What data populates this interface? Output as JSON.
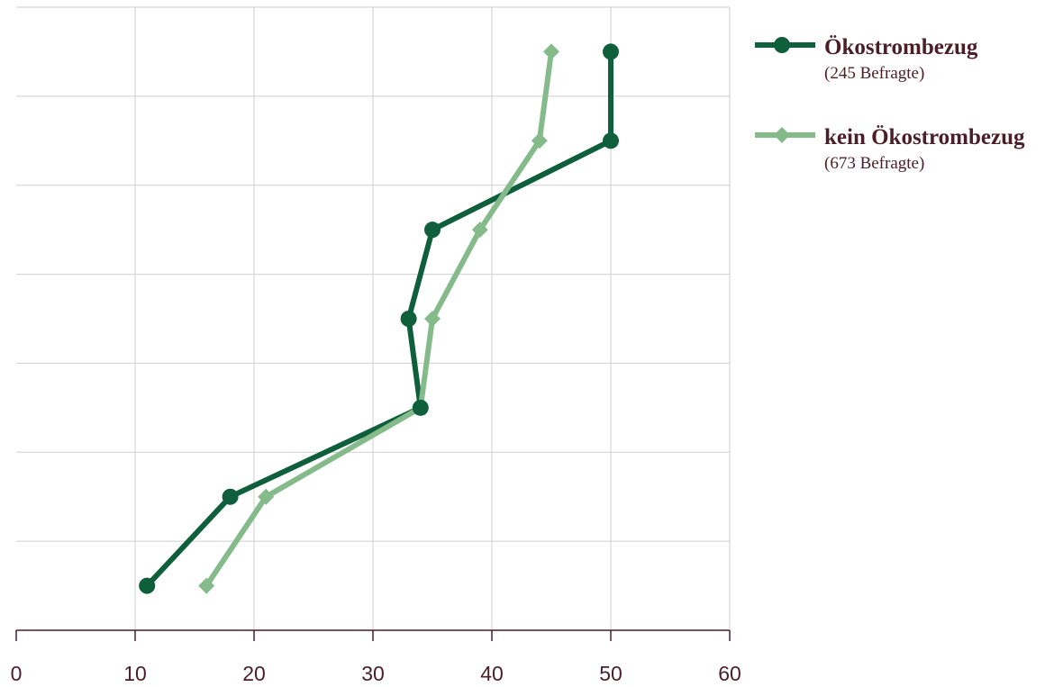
{
  "chart_data": {
    "type": "line",
    "orientation": "horizontal",
    "categories": [
      null,
      null,
      null,
      null,
      null,
      null,
      null
    ],
    "series": [
      {
        "name": "Ökostrombezug",
        "note": "(245 Befragte)",
        "color": "#0f5e3c",
        "marker": "circle",
        "values": [
          50,
          50,
          35,
          33,
          34,
          18,
          11
        ]
      },
      {
        "name": "kein Ökostrombezug",
        "note": "(673 Befragte)",
        "color": "#85bb8a",
        "marker": "diamond",
        "values": [
          45,
          44,
          39,
          35,
          34,
          21,
          16
        ]
      }
    ],
    "xlim": [
      0,
      60
    ],
    "xticks": [
      0,
      10,
      20,
      30,
      40,
      50,
      60
    ],
    "grid": true
  }
}
